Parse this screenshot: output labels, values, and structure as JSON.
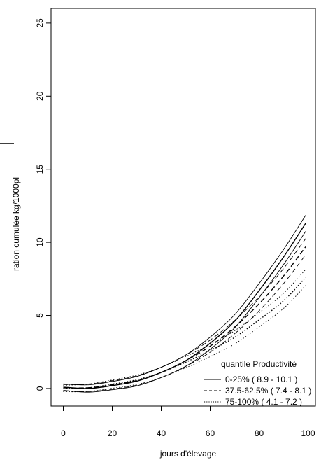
{
  "chart_data": {
    "type": "line",
    "title": "",
    "xlabel": "jours d'élevage",
    "ylabel": "ration cumulée kg/1000pl",
    "xlim": [
      -5,
      103
    ],
    "ylim": [
      -1.2,
      26
    ],
    "x_ticks": [
      0,
      20,
      40,
      60,
      80,
      100
    ],
    "x_tick_labels": [
      "0",
      "20",
      "40",
      "60",
      "80",
      "100"
    ],
    "y_ticks": [
      0,
      5,
      10,
      15,
      20,
      25
    ],
    "y_tick_labels": [
      "0",
      "5",
      "10",
      "15",
      "20",
      "25"
    ],
    "grid": false,
    "legend": {
      "title": "quantile Productivité",
      "position": "bottom-right"
    },
    "series": [
      {
        "name": "0-25% ( 8.9 - 10.1 )",
        "line_style": "solid",
        "x": [
          0,
          10,
          20,
          30,
          40,
          50,
          60,
          70,
          80,
          90,
          99
        ],
        "values": [
          0.1,
          0.0,
          0.2,
          0.5,
          1.1,
          1.9,
          3.1,
          4.6,
          6.7,
          9.0,
          11.3
        ]
      },
      {
        "name": "37.5-62.5% ( 7.4 - 8.1 )",
        "line_style": "dashed",
        "x": [
          0,
          10,
          20,
          30,
          40,
          50,
          60,
          70,
          80,
          90,
          99
        ],
        "values": [
          0.05,
          0.05,
          0.25,
          0.55,
          1.1,
          1.9,
          2.9,
          4.2,
          5.8,
          7.7,
          9.7
        ]
      },
      {
        "name": "75-100% ( 4.1 - 7.2 )",
        "line_style": "dotted",
        "x": [
          0,
          10,
          20,
          30,
          40,
          50,
          60,
          70,
          80,
          90,
          99
        ],
        "values": [
          0.0,
          0.05,
          0.3,
          0.6,
          1.1,
          1.8,
          2.6,
          3.5,
          4.7,
          6.0,
          7.6
        ]
      }
    ],
    "colors": {
      "line": "#000000",
      "background": "#ffffff"
    }
  }
}
